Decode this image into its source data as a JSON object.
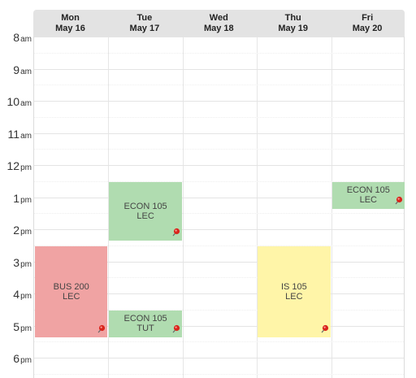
{
  "days": [
    {
      "dow": "Mon",
      "date": "May 16"
    },
    {
      "dow": "Tue",
      "date": "May 17"
    },
    {
      "dow": "Wed",
      "date": "May 18"
    },
    {
      "dow": "Thu",
      "date": "May 19"
    },
    {
      "dow": "Fri",
      "date": "May 20"
    }
  ],
  "hours": [
    {
      "num": "8",
      "suffix": "am"
    },
    {
      "num": "9",
      "suffix": "am"
    },
    {
      "num": "10",
      "suffix": "am"
    },
    {
      "num": "11",
      "suffix": "am"
    },
    {
      "num": "12",
      "suffix": "pm"
    },
    {
      "num": "1",
      "suffix": "pm"
    },
    {
      "num": "2",
      "suffix": "pm"
    },
    {
      "num": "3",
      "suffix": "pm"
    },
    {
      "num": "4",
      "suffix": "pm"
    },
    {
      "num": "5",
      "suffix": "pm"
    },
    {
      "num": "6",
      "suffix": "pm"
    }
  ],
  "events": [
    {
      "title": "BUS 200\nLEC",
      "day": 0,
      "start": 14.5,
      "end": 17.33,
      "color": "#f0a3a3",
      "icon": "pushpin-icon"
    },
    {
      "title": "ECON 105\nLEC",
      "day": 1,
      "start": 12.5,
      "end": 14.33,
      "color": "#b0dcb0",
      "icon": "pushpin-icon"
    },
    {
      "title": "ECON 105\nTUT",
      "day": 1,
      "start": 16.5,
      "end": 17.33,
      "color": "#b0dcb0",
      "icon": "pushpin-icon"
    },
    {
      "title": "IS 105\nLEC",
      "day": 3,
      "start": 14.5,
      "end": 17.33,
      "color": "#fff5a8",
      "icon": "pushpin-icon"
    },
    {
      "title": "ECON 105\nLEC",
      "day": 4,
      "start": 12.5,
      "end": 13.33,
      "color": "#b0dcb0",
      "icon": "pushpin-icon"
    }
  ]
}
